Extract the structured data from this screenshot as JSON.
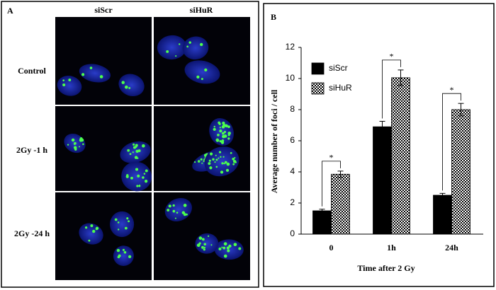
{
  "panel_a": {
    "label": "A",
    "columns": [
      "siScr",
      "siHuR"
    ],
    "rows": [
      "Control",
      "2Gy -1 h",
      "2Gy -24 h"
    ]
  },
  "chart_data": {
    "type": "bar",
    "panel_label": "B",
    "categories": [
      "0",
      "1h",
      "24h"
    ],
    "series": [
      {
        "name": "siScr",
        "color": "#000000",
        "values": [
          1.5,
          6.9,
          2.5
        ],
        "errors": [
          0.1,
          0.35,
          0.12
        ]
      },
      {
        "name": "siHuR",
        "color": "#000000",
        "pattern": "checker",
        "values": [
          3.85,
          10.05,
          8.0
        ],
        "errors": [
          0.2,
          0.5,
          0.4
        ]
      }
    ],
    "annotations": [
      "*",
      "*",
      "*"
    ],
    "x_label": "Time after 2 Gy",
    "y_label": "Average  number of foci / cell",
    "ylim": [
      0,
      12
    ],
    "yticks": [
      0,
      2,
      4,
      6,
      8,
      10,
      12
    ],
    "legend": "upper left"
  }
}
